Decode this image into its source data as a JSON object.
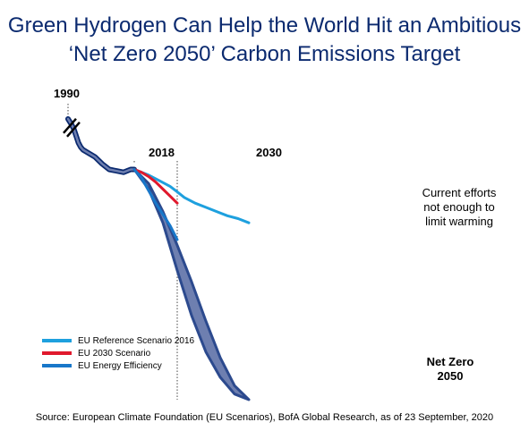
{
  "chart_data": {
    "type": "line",
    "title_line1": "Green Hydrogen Can Help the World Hit an Ambitious",
    "title_line2": "‘Net Zero 2050’ Carbon Emissions Target",
    "markers": [
      {
        "label": "1990",
        "year": 1990
      },
      {
        "label": "2018",
        "year": 2018
      },
      {
        "label": "2030",
        "year": 2030
      }
    ],
    "annotation_current": [
      "Current efforts",
      "not enough to",
      "limit warming"
    ],
    "annotation_netzero": [
      "Net Zero",
      "2050"
    ],
    "series": [
      {
        "name": "EU Reference Scenario 2016",
        "color": "#1ea0de",
        "x": [
          2018,
          2020,
          2022,
          2025,
          2028,
          2030,
          2032,
          2035,
          2038,
          2041,
          2044,
          2047,
          2050
        ],
        "y": [
          82,
          81,
          80,
          78,
          76,
          74,
          72,
          70,
          68.5,
          67,
          65.5,
          64.5,
          63
        ]
      },
      {
        "name": "EU 2030 Scenario",
        "color": "#e0192d",
        "x": [
          2018,
          2020,
          2022,
          2024,
          2026,
          2028,
          2030
        ],
        "y": [
          82,
          81,
          79.5,
          77.5,
          75,
          72.5,
          70
        ]
      },
      {
        "name": "EU Energy Efficiency",
        "color": "#1877c9",
        "x": [
          2018,
          2020,
          2022,
          2024,
          2026,
          2028,
          2030
        ],
        "y": [
          82,
          79,
          74.5,
          70,
          66,
          62,
          57
        ]
      }
    ],
    "historical_band": {
      "color": "#0b2a6f",
      "x": [
        1990,
        1993,
        1995,
        1997,
        1999,
        2001,
        2003,
        2005,
        2007,
        2009,
        2011,
        2013,
        2015,
        2017,
        2018
      ],
      "y": [
        100,
        98,
        96.5,
        94,
        91.5,
        90,
        89,
        88,
        86.5,
        84,
        82,
        81.5,
        81,
        82,
        82
      ]
    },
    "net_zero_band": {
      "color": "#6e7fb0",
      "edge": "#2c4a8e",
      "x": [
        2018,
        2022,
        2026,
        2030,
        2034,
        2038,
        2042,
        2046,
        2050
      ],
      "y_upper": [
        82,
        77,
        67,
        55,
        42,
        28,
        15,
        5,
        0
      ],
      "y_lower": [
        82,
        75,
        63,
        46,
        30,
        17,
        8,
        2,
        0
      ]
    }
  },
  "legend": [
    {
      "label": "EU Reference Scenario 2016",
      "color": "#1ea0de"
    },
    {
      "label": "EU 2030 Scenario",
      "color": "#e0192d"
    },
    {
      "label": "EU Energy Efficiency",
      "color": "#1877c9"
    }
  ],
  "source": "Source: European Climate Foundation (EU Scenarios), BofA Global Research, as of 23 September, 2020"
}
